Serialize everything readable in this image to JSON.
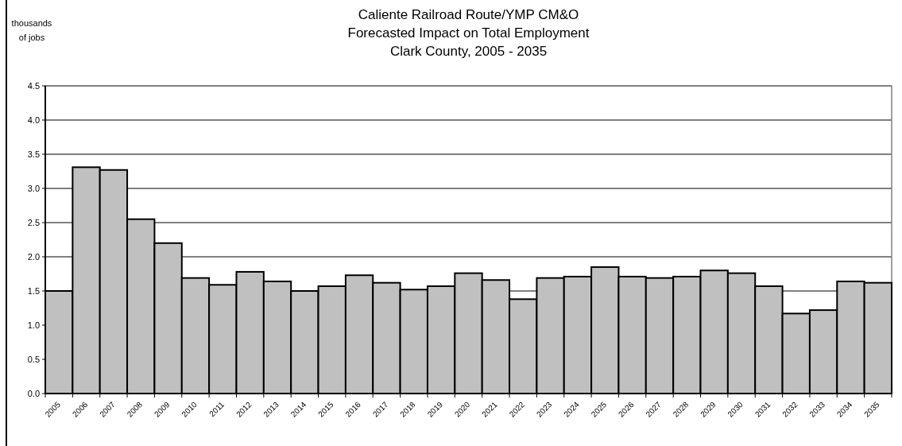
{
  "chart_data": {
    "type": "bar",
    "title": "Caliente Railroad Route/YMP CM&O\nForecasted Impact on Total Employment\nClark County, 2005 - 2035",
    "ylabel": "thousands\nof jobs",
    "categories": [
      "2005",
      "2006",
      "2007",
      "2008",
      "2009",
      "2010",
      "2011",
      "2012",
      "2013",
      "2014",
      "2015",
      "2016",
      "2017",
      "2018",
      "2019",
      "2020",
      "2021",
      "2022",
      "2023",
      "2024",
      "2025",
      "2026",
      "2027",
      "2028",
      "2029",
      "2030",
      "2031",
      "2032",
      "2033",
      "2034",
      "2035"
    ],
    "values": [
      1.5,
      3.31,
      3.27,
      2.55,
      2.2,
      1.69,
      1.59,
      1.78,
      1.64,
      1.5,
      1.57,
      1.73,
      1.62,
      1.52,
      1.57,
      1.76,
      1.66,
      1.38,
      1.69,
      1.71,
      1.85,
      1.71,
      1.69,
      1.71,
      1.8,
      1.76,
      1.57,
      1.17,
      1.22,
      1.64,
      1.62
    ],
    "color": "#c0c0c0",
    "ylim": [
      0,
      4.5
    ],
    "yticks": [
      {
        "value": 0,
        "label": "0.0"
      },
      {
        "value": 0.5,
        "label": "0.5"
      },
      {
        "value": 1,
        "label": "1.0"
      },
      {
        "value": 1.5,
        "label": "1.5"
      },
      {
        "value": 2,
        "label": "2.0"
      },
      {
        "value": 2.5,
        "label": "2.5"
      },
      {
        "value": 3,
        "label": "3.0"
      },
      {
        "value": 3.5,
        "label": "3.5"
      },
      {
        "value": 4,
        "label": "4.0"
      },
      {
        "value": 4.5,
        "label": "4.5"
      }
    ],
    "grid": "y"
  }
}
